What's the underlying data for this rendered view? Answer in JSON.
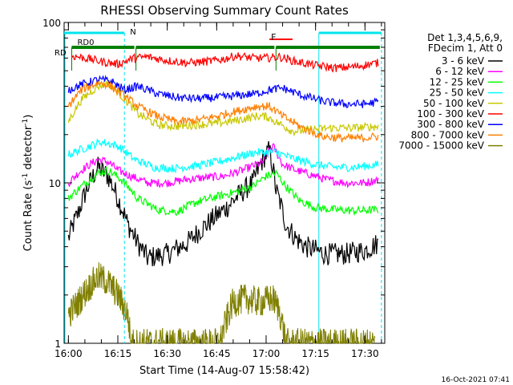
{
  "chart_data": {
    "type": "line",
    "title": "RHESSI Observing Summary Count Rates",
    "xlabel": "Start Time (14-Aug-07 15:58:42)",
    "ylabel_prefix": "Count Rate (s",
    "ylabel_sup": "-1",
    "ylabel_mid": " detector",
    "ylabel_suffix": ")",
    "y_scale": "log",
    "ylim": [
      1,
      100
    ],
    "xlim": [
      "15:58:42",
      "17:36:00"
    ],
    "x_ticks": [
      "16:00",
      "16:15",
      "16:30",
      "16:45",
      "17:00",
      "17:15",
      "17:30"
    ],
    "y_ticks": [
      "1",
      "10",
      "100"
    ],
    "legend_header": [
      "Det 1,3,4,5,6,9,",
      "FDecim 1, Att 0"
    ],
    "timestamp": "16-Oct-2021 07:41",
    "flag_labels": {
      "night": "N",
      "flare": "F",
      "rd0_top": "RD0",
      "rd0_left": "RD"
    },
    "colors": {
      "night": "#00e5ee",
      "rd0": "#007f00",
      "s1": "#000000",
      "s2": "#ff00ff",
      "s3": "#00ff00",
      "s4": "#00ffff",
      "s5": "#c8c800",
      "s6": "#ff0000",
      "s7": "#0000ff",
      "s8": "#ff7f00",
      "s9": "#7f7f00"
    },
    "series": [
      {
        "name": "3 - 6 keV",
        "color_key": "s1",
        "x": [
          "16:00",
          "16:03",
          "16:06",
          "16:09",
          "16:12",
          "16:15",
          "16:18",
          "16:21",
          "16:24",
          "16:30",
          "16:36",
          "16:42",
          "16:48",
          "16:52",
          "16:56",
          "16:59",
          "17:01",
          "17:03",
          "17:06",
          "17:09",
          "17:12",
          "17:18",
          "17:24",
          "17:30",
          "17:34"
        ],
        "y": [
          4.5,
          6.5,
          9.5,
          12.5,
          11,
          8,
          5.5,
          4.2,
          3.4,
          3.6,
          4.2,
          5.5,
          7,
          8.5,
          10,
          14,
          16,
          9,
          5.5,
          4.5,
          4,
          3.6,
          3.6,
          3.8,
          4.2
        ]
      },
      {
        "name": "6 - 12 keV",
        "color_key": "s2",
        "x": [
          "16:00",
          "16:04",
          "16:09",
          "16:12",
          "16:15",
          "16:19",
          "16:24",
          "16:30",
          "16:36",
          "16:42",
          "16:47",
          "16:53",
          "16:59",
          "17:02",
          "17:05",
          "17:09",
          "17:12",
          "17:18",
          "17:24",
          "17:30",
          "17:34"
        ],
        "y": [
          10,
          12,
          14,
          13.5,
          12,
          11,
          10,
          10,
          10.5,
          10.8,
          11,
          12,
          13.5,
          17,
          13,
          12,
          11.5,
          10.5,
          10,
          10,
          10.5
        ]
      },
      {
        "name": "12 - 25 keV",
        "color_key": "s3",
        "x": [
          "16:00",
          "16:04",
          "16:09",
          "16:12",
          "16:16",
          "16:21",
          "16:27",
          "16:33",
          "16:39",
          "16:45",
          "16:51",
          "16:56",
          "17:00",
          "17:03",
          "17:06",
          "17:10",
          "17:15",
          "17:21",
          "17:27",
          "17:34"
        ],
        "y": [
          8,
          9.5,
          11.5,
          12,
          10.5,
          8,
          6.8,
          6.6,
          7.6,
          8.2,
          8.8,
          9.5,
          11,
          11.5,
          9.5,
          7.8,
          7,
          6.8,
          6.7,
          6.8
        ]
      },
      {
        "name": "25 - 50 keV",
        "color_key": "s4",
        "x": [
          "16:00",
          "16:05",
          "16:10",
          "16:15",
          "16:20",
          "16:26",
          "16:32",
          "16:39",
          "16:45",
          "16:51",
          "16:57",
          "17:03",
          "17:09",
          "17:15",
          "17:21",
          "17:27",
          "17:34"
        ],
        "y": [
          15,
          16.5,
          18,
          17,
          14,
          12.5,
          12.3,
          12.8,
          13.5,
          14.5,
          15.5,
          15.5,
          14,
          13,
          12.5,
          12.5,
          13
        ]
      },
      {
        "name": "50 - 100 keV",
        "color_key": "s5",
        "x": [
          "16:00",
          "16:04",
          "16:09",
          "16:12",
          "16:16",
          "16:21",
          "16:27",
          "16:33",
          "16:39",
          "16:45",
          "16:51",
          "16:57",
          "17:00",
          "17:03",
          "17:08",
          "17:14",
          "17:20",
          "17:26",
          "17:34"
        ],
        "y": [
          24,
          33,
          40,
          42,
          35,
          27,
          23,
          22.5,
          23,
          23.5,
          24.5,
          26,
          26,
          24,
          21,
          21.5,
          22,
          22,
          22.5
        ]
      },
      {
        "name": "100 - 300 keV",
        "color_key": "s6",
        "x": [
          "16:01",
          "16:05",
          "16:10",
          "16:15",
          "16:20",
          "16:24",
          "16:30",
          "16:36",
          "16:42",
          "16:47",
          "16:51",
          "16:56",
          "17:00",
          "17:04",
          "17:09",
          "17:15",
          "17:21",
          "17:27",
          "17:34"
        ],
        "y": [
          62,
          60,
          57,
          55,
          60,
          61,
          58,
          56,
          57,
          59,
          62,
          60,
          60,
          61,
          57,
          54,
          52,
          53,
          56
        ]
      },
      {
        "name": "300 - 800 keV",
        "color_key": "s7",
        "x": [
          "16:00",
          "16:04",
          "16:09",
          "16:13",
          "16:17",
          "16:21",
          "16:27",
          "16:33",
          "16:39",
          "16:45",
          "16:51",
          "16:57",
          "17:01",
          "17:05",
          "17:11",
          "17:18",
          "17:24",
          "17:30",
          "17:34"
        ],
        "y": [
          38,
          41,
          44,
          43,
          38,
          40,
          36,
          34,
          33.5,
          34,
          35,
          36,
          38,
          39,
          35,
          32,
          31,
          31,
          32
        ]
      },
      {
        "name": "800 - 7000 keV",
        "color_key": "s8",
        "x": [
          "16:00",
          "16:04",
          "16:09",
          "16:12",
          "16:16",
          "16:21",
          "16:27",
          "16:33",
          "16:39",
          "16:45",
          "16:51",
          "16:57",
          "17:01",
          "17:05",
          "17:11",
          "17:17",
          "17:23",
          "17:29",
          "17:34"
        ],
        "y": [
          30,
          38,
          42,
          41,
          36,
          30,
          26,
          24,
          24.5,
          26,
          28,
          30,
          30,
          26,
          22,
          19.5,
          19,
          19,
          19.5
        ]
      },
      {
        "name": "7000 - 15000 keV",
        "color_key": "s9",
        "x": [
          "16:00",
          "16:03",
          "16:06",
          "16:09",
          "16:12",
          "16:15",
          "16:18",
          "16:19",
          "16:22",
          "16:25",
          "16:28",
          "16:31",
          "16:34",
          "16:37",
          "16:40",
          "16:43",
          "16:46",
          "16:50",
          "16:54",
          "16:58",
          "17:02",
          "17:04",
          "17:06",
          "17:09",
          "17:12",
          "17:15",
          "17:18",
          "17:21",
          "17:24",
          "17:27",
          "17:30",
          "17:33"
        ],
        "y": [
          1.5,
          1.8,
          2.2,
          2.6,
          2.4,
          2.0,
          1.5,
          1.0,
          1.0,
          1.0,
          1.0,
          1.0,
          1.0,
          1.0,
          1.0,
          1.0,
          1.0,
          1.8,
          1.9,
          1.8,
          1.9,
          1.6,
          1.0,
          1.0,
          1.0,
          1.0,
          1.0,
          1.0,
          1.0,
          1.0,
          1.0,
          1.0
        ]
      }
    ],
    "night_intervals": [
      [
        "15:58:42",
        "16:17:00"
      ],
      [
        "17:16:00",
        "17:35:00"
      ]
    ],
    "rd0_intervals": [
      [
        "16:01:00",
        "16:20:30"
      ],
      [
        "16:20:30",
        "17:03:00"
      ],
      [
        "17:03:00",
        "17:35:00"
      ]
    ],
    "flare_intervals": [
      [
        "17:01:00",
        "17:08:00"
      ]
    ],
    "grid": false,
    "legend_position": "right"
  }
}
